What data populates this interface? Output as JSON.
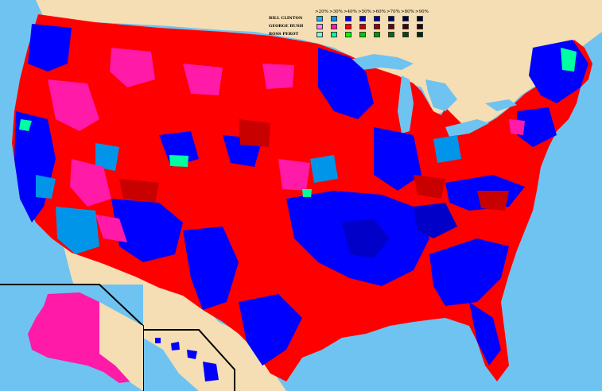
{
  "legend": {
    "thresholds": [
      ">20%",
      ">30%",
      ">40%",
      ">50%",
      ">60%",
      ">70%",
      ">80%",
      ">90%"
    ],
    "rows": [
      {
        "label": "BILL CLINTON",
        "colors": [
          "#00bfff",
          "#0095e8",
          "#0000ff",
          "#0000c8",
          "#00009a",
          "#000070",
          "#000045",
          "#00002a"
        ]
      },
      {
        "label": "GEORGE BUSH",
        "colors": [
          "#ff88ff",
          "#ff1aa8",
          "#ff0000",
          "#c80000",
          "#960000",
          "#700000",
          "#4a0000",
          "#2a0000"
        ]
      },
      {
        "label": "ROSS PEROT",
        "colors": [
          "#7fffd4",
          "#00ffa0",
          "#00ff00",
          "#00c800",
          "#009600",
          "#007000",
          "#004a00",
          "#002a00"
        ]
      }
    ]
  },
  "colors": {
    "water": "#6fc3f0",
    "land_outside": "#f5deb3",
    "clinton_strong": "#0000ff",
    "clinton_weak": "#0095e8",
    "bush_strong": "#ff0000",
    "bush_weak": "#ff1aa8",
    "bush_darker": "#c80000",
    "perot": "#00ffa0"
  }
}
